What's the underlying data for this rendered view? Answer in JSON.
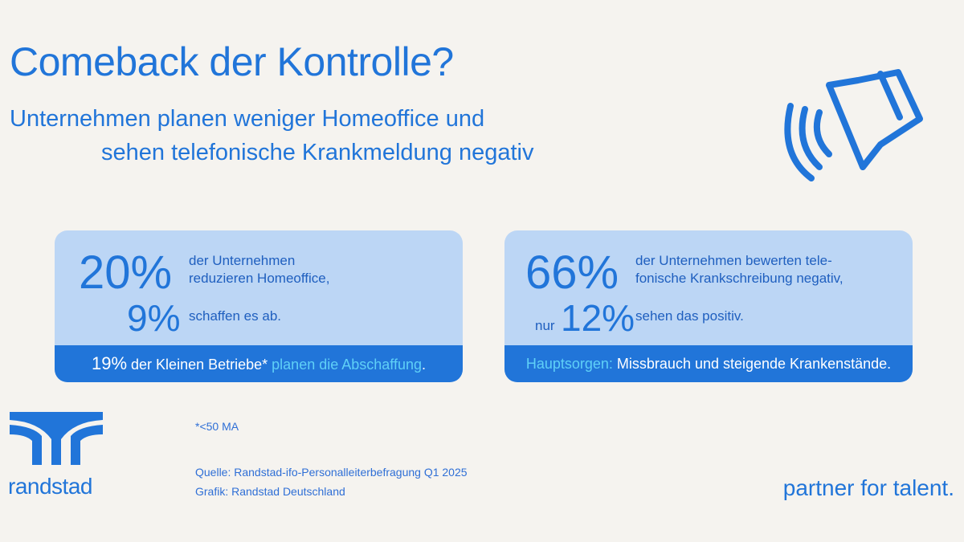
{
  "header": {
    "title": "Comeback der Kontrolle?",
    "subtitle": [
      "Unternehmen planen weniger Homeoffice und",
      "sehen telefonische Krankmeldung negativ"
    ]
  },
  "cards": [
    {
      "main_number": "20%",
      "main_text": [
        "der Unternehmen",
        "reduzieren Homeoffice,"
      ],
      "prefix": null,
      "second_number": "9%",
      "second_text": "schaffen es ab.",
      "footer": [
        "19%",
        " der Kleinen Betriebe* ",
        "planen die Abschaffung",
        "."
      ]
    },
    {
      "main_number": "66%",
      "main_text": [
        "der Unternehmen bewerten tele-",
        "fonische Krankschreibung negativ,"
      ],
      "prefix": "nur",
      "second_number": "12%",
      "second_text": "sehen das positiv.",
      "footer": [
        "Hauptsorgen:",
        " Missbrauch und steigende Krankenstände."
      ]
    }
  ],
  "footnote": "*<50 MA",
  "source": [
    "Quelle: Randstad-ifo-Personalleiterbefragung Q1 2025",
    "Grafik: Randstad Deutschland"
  ],
  "logo": "randstad",
  "slogan": "partner for talent."
}
